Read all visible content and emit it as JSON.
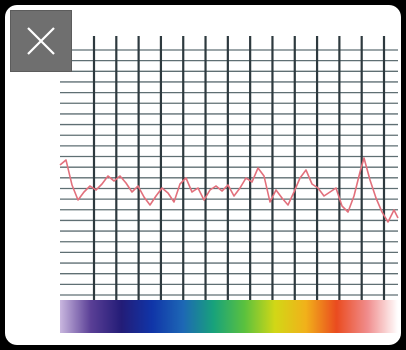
{
  "close_button": {
    "icon": "close-icon"
  },
  "grid_figure": {
    "grid_color": "#5f6f73",
    "trace_color": "#e2707c",
    "vertical_lines": 14,
    "horizontal_lines": 24
  },
  "spectrum_bar": {
    "colors": [
      "#c9b7df",
      "#5a3f96",
      "#231c77",
      "#1035a8",
      "#1d67b5",
      "#18a27b",
      "#5ac13e",
      "#d2d716",
      "#f1b11a",
      "#ea4b1f",
      "#f08c8c",
      "#ffffff"
    ]
  }
}
